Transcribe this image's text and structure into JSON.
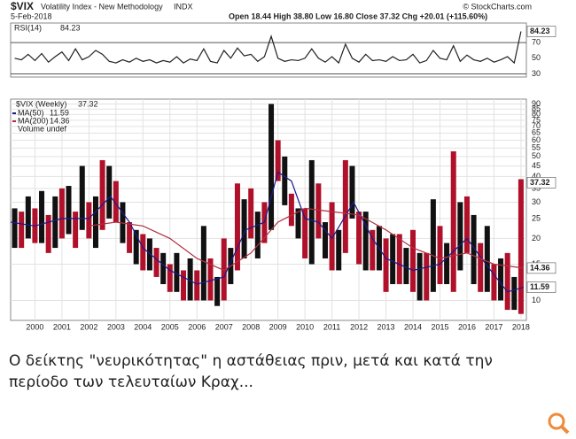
{
  "header": {
    "symbol": "$VIX",
    "name": "Volatility Index - New Methodology",
    "exchange": "INDX",
    "date": "5-Feb-2018",
    "quote": "Open 18.44 High 38.80 Low 16.80 Close 37.32 Chg +20.01 (+115.60%)",
    "source": "© StockCharts.com"
  },
  "chart_data": [
    {
      "type": "line",
      "title": "RSI(14)",
      "last": 84.23,
      "color": "#222222",
      "x": [
        1999.25,
        1999.5,
        1999.75,
        2000,
        2000.25,
        2000.5,
        2000.75,
        2001,
        2001.25,
        2001.5,
        2001.75,
        2002,
        2002.25,
        2002.5,
        2002.75,
        2003,
        2003.25,
        2003.5,
        2003.75,
        2004,
        2004.25,
        2004.5,
        2004.75,
        2005,
        2005.25,
        2005.5,
        2005.75,
        2006,
        2006.25,
        2006.5,
        2006.75,
        2007,
        2007.25,
        2007.5,
        2007.75,
        2008,
        2008.25,
        2008.5,
        2008.75,
        2009,
        2009.25,
        2009.5,
        2009.75,
        2010,
        2010.25,
        2010.5,
        2010.75,
        2011,
        2011.25,
        2011.5,
        2011.75,
        2012,
        2012.25,
        2012.5,
        2012.75,
        2013,
        2013.25,
        2013.5,
        2013.75,
        2014,
        2014.25,
        2014.5,
        2014.75,
        2015,
        2015.25,
        2015.5,
        2015.75,
        2016,
        2016.25,
        2016.5,
        2016.75,
        2017,
        2017.25,
        2017.5,
        2017.75,
        2018
      ],
      "values": [
        50,
        48,
        55,
        47,
        56,
        45,
        52,
        58,
        47,
        62,
        48,
        52,
        60,
        55,
        46,
        44,
        48,
        45,
        50,
        46,
        48,
        44,
        47,
        45,
        52,
        44,
        49,
        47,
        62,
        46,
        44,
        60,
        50,
        63,
        53,
        55,
        46,
        52,
        78,
        50,
        46,
        48,
        47,
        50,
        62,
        50,
        45,
        52,
        44,
        68,
        50,
        45,
        55,
        47,
        48,
        46,
        52,
        47,
        48,
        55,
        44,
        47,
        60,
        50,
        48,
        66,
        46,
        54,
        48,
        46,
        50,
        45,
        48,
        52,
        44,
        84.23
      ],
      "xlim": [
        1999.1,
        2018.2
      ],
      "ylim": [
        26,
        95
      ],
      "yticks": [
        30,
        50,
        70
      ],
      "reference_lines": [
        70,
        30
      ]
    },
    {
      "type": "range-bar",
      "log_scale": true,
      "grid": true,
      "bars": {
        "name": "$VIX (Weekly)",
        "last": 37.32,
        "colors": [
          "#111111",
          "#b0102a"
        ],
        "x": [
          1999.25,
          1999.5,
          1999.75,
          2000,
          2000.25,
          2000.5,
          2000.75,
          2001,
          2001.25,
          2001.5,
          2001.75,
          2002,
          2002.25,
          2002.5,
          2002.75,
          2003,
          2003.25,
          2003.5,
          2003.75,
          2004,
          2004.25,
          2004.5,
          2004.75,
          2005,
          2005.25,
          2005.5,
          2005.75,
          2006,
          2006.25,
          2006.5,
          2006.75,
          2007,
          2007.25,
          2007.5,
          2007.75,
          2008,
          2008.25,
          2008.5,
          2008.75,
          2009,
          2009.25,
          2009.5,
          2009.75,
          2010,
          2010.25,
          2010.5,
          2010.75,
          2011,
          2011.25,
          2011.5,
          2011.75,
          2012,
          2012.25,
          2012.5,
          2012.75,
          2013,
          2013.25,
          2013.5,
          2013.75,
          2014,
          2014.25,
          2014.5,
          2014.75,
          2015,
          2015.25,
          2015.5,
          2015.75,
          2016,
          2016.25,
          2016.5,
          2016.75,
          2017,
          2017.25,
          2017.5,
          2017.75,
          2018
        ],
        "low": [
          18,
          18,
          20,
          19,
          19,
          17,
          18,
          20,
          21,
          18,
          22,
          20,
          18,
          22,
          25,
          24,
          19,
          17,
          15,
          14,
          14,
          13,
          12,
          11,
          11,
          10,
          10,
          10,
          10,
          10,
          9.4,
          10,
          12,
          14,
          16,
          20,
          16,
          19,
          22,
          38,
          29,
          23,
          20,
          16,
          15,
          20,
          16,
          14,
          14,
          17,
          25,
          15,
          14,
          14,
          14,
          11,
          12,
          12,
          12,
          11,
          10,
          10,
          11,
          12,
          12,
          11,
          14,
          17,
          12,
          11,
          11,
          10,
          10,
          9,
          9,
          8.6
        ],
        "high": [
          28,
          27,
          32,
          28,
          34,
          26,
          32,
          35,
          36,
          27,
          45,
          30,
          32,
          48,
          45,
          38,
          30,
          24,
          22,
          21,
          20,
          18,
          17,
          15,
          17,
          14,
          16,
          14,
          23,
          16,
          13,
          20,
          18,
          37,
          31,
          35,
          27,
          30,
          90,
          60,
          50,
          33,
          28,
          28,
          48,
          37,
          24,
          30,
          22,
          48,
          45,
          27,
          27,
          22,
          23,
          20,
          21,
          21,
          18,
          22,
          17,
          17,
          31,
          23,
          19,
          53,
          30,
          32,
          26,
          19,
          23,
          15,
          16,
          17,
          13,
          38.8
        ]
      },
      "lines": [
        {
          "name": "MA(50)",
          "last": 11.59,
          "color": "#1a1a8c",
          "x": [
            1999.1,
            2000,
            2001,
            2002,
            2002.8,
            2003.5,
            2004,
            2005,
            2006,
            2007,
            2007.8,
            2008.5,
            2009,
            2009.5,
            2010,
            2010.5,
            2011,
            2011.8,
            2012.5,
            2013,
            2014,
            2015,
            2016,
            2016.7,
            2017.5,
            2018.1
          ],
          "values": [
            24,
            23,
            25,
            25,
            32,
            24,
            18,
            14,
            12,
            13,
            22,
            24,
            42,
            38,
            25,
            24,
            20,
            30,
            20,
            16,
            14,
            15,
            20,
            15,
            11,
            11.59
          ]
        },
        {
          "name": "MA(200)",
          "last": 14.36,
          "color": "#b03040",
          "x": [
            2002,
            2003,
            2004,
            2005,
            2006,
            2007,
            2008,
            2009,
            2010,
            2011,
            2012,
            2013,
            2014,
            2015,
            2016,
            2017,
            2018.1
          ],
          "values": [
            23,
            24,
            23,
            20,
            16,
            14,
            17,
            24,
            28,
            27,
            26,
            22,
            18,
            16,
            17,
            15,
            14.36
          ]
        }
      ],
      "volume_label": "Volume undef",
      "xlim": [
        1999.1,
        2018.2
      ],
      "xticks": [
        2000,
        2001,
        2002,
        2003,
        2004,
        2005,
        2006,
        2007,
        2008,
        2009,
        2010,
        2011,
        2012,
        2013,
        2014,
        2015,
        2016,
        2017,
        2018
      ],
      "ylim": [
        8,
        95
      ],
      "yticks": [
        10,
        15,
        20,
        25,
        30,
        35,
        40,
        45,
        50,
        55,
        60,
        65,
        70,
        75,
        80,
        85,
        90
      ]
    }
  ],
  "caption": "Ο δείκτης \"νευρικότητας\" η αστάθειας πριν, μετά  και κατά την περίοδο των τελευταίων Κραχ..."
}
